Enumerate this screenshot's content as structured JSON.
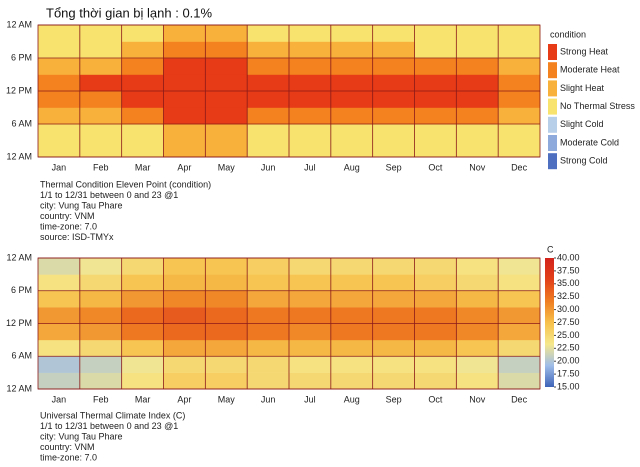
{
  "header_text": "Tổng thời gian bị lạnh : 0.1%",
  "chart_data": [
    {
      "type": "heatmap",
      "categories": [
        "Jan",
        "Feb",
        "Mar",
        "Apr",
        "May",
        "Jun",
        "Jul",
        "Aug",
        "Sep",
        "Oct",
        "Nov",
        "Dec"
      ],
      "hour_bins": [
        0,
        3,
        6,
        9,
        12,
        15,
        18,
        21,
        24
      ],
      "ylim": [
        0,
        24
      ],
      "yticks": [
        {
          "value": 0,
          "label": "12 AM"
        },
        {
          "value": 6,
          "label": "6 AM"
        },
        {
          "value": 12,
          "label": "12 PM"
        },
        {
          "value": 18,
          "label": "6 PM"
        },
        {
          "value": 24,
          "label": "12 AM"
        }
      ],
      "legend_title": "condition",
      "legend": [
        {
          "name": "Strong Heat",
          "color": "#e63b16"
        },
        {
          "name": "Moderate Heat",
          "color": "#f4821f"
        },
        {
          "name": "Slight Heat",
          "color": "#f8b13a"
        },
        {
          "name": "No Thermal Stress",
          "color": "#f8e36e"
        },
        {
          "name": "Slight Cold",
          "color": "#b7cfe9"
        },
        {
          "name": "Moderate Cold",
          "color": "#8ea9dc"
        },
        {
          "name": "Strong Cold",
          "color": "#4e6fbf"
        }
      ],
      "values": [
        [
          "No Thermal Stress",
          "No Thermal Stress",
          "Slight Heat",
          "Moderate Heat",
          "Moderate Heat",
          "Slight Heat",
          "No Thermal Stress",
          "No Thermal Stress"
        ],
        [
          "No Thermal Stress",
          "No Thermal Stress",
          "Slight Heat",
          "Moderate Heat",
          "Strong Heat",
          "Slight Heat",
          "No Thermal Stress",
          "No Thermal Stress"
        ],
        [
          "No Thermal Stress",
          "No Thermal Stress",
          "Moderate Heat",
          "Strong Heat",
          "Strong Heat",
          "Moderate Heat",
          "Slight Heat",
          "No Thermal Stress"
        ],
        [
          "Slight Heat",
          "Slight Heat",
          "Strong Heat",
          "Strong Heat",
          "Strong Heat",
          "Strong Heat",
          "Moderate Heat",
          "Slight Heat"
        ],
        [
          "Slight Heat",
          "Slight Heat",
          "Strong Heat",
          "Strong Heat",
          "Strong Heat",
          "Strong Heat",
          "Moderate Heat",
          "Slight Heat"
        ],
        [
          "No Thermal Stress",
          "No Thermal Stress",
          "Moderate Heat",
          "Strong Heat",
          "Strong Heat",
          "Moderate Heat",
          "Slight Heat",
          "No Thermal Stress"
        ],
        [
          "No Thermal Stress",
          "No Thermal Stress",
          "Moderate Heat",
          "Strong Heat",
          "Strong Heat",
          "Moderate Heat",
          "Slight Heat",
          "No Thermal Stress"
        ],
        [
          "No Thermal Stress",
          "No Thermal Stress",
          "Moderate Heat",
          "Strong Heat",
          "Strong Heat",
          "Moderate Heat",
          "Slight Heat",
          "No Thermal Stress"
        ],
        [
          "No Thermal Stress",
          "No Thermal Stress",
          "Moderate Heat",
          "Strong Heat",
          "Strong Heat",
          "Moderate Heat",
          "Slight Heat",
          "No Thermal Stress"
        ],
        [
          "No Thermal Stress",
          "No Thermal Stress",
          "Moderate Heat",
          "Strong Heat",
          "Strong Heat",
          "Moderate Heat",
          "No Thermal Stress",
          "No Thermal Stress"
        ],
        [
          "No Thermal Stress",
          "No Thermal Stress",
          "Moderate Heat",
          "Strong Heat",
          "Strong Heat",
          "Moderate Heat",
          "No Thermal Stress",
          "No Thermal Stress"
        ],
        [
          "No Thermal Stress",
          "No Thermal Stress",
          "Slight Heat",
          "Moderate Heat",
          "Moderate Heat",
          "Slight Heat",
          "No Thermal Stress",
          "No Thermal Stress"
        ]
      ],
      "notes": [
        "Thermal Condition Eleven Point (condition)",
        "1/1 to 12/31 between 0 and 23 @1",
        "city: Vung Tau Phare",
        "country: VNM",
        "time-zone: 7.0",
        "source: ISD-TMYx"
      ]
    },
    {
      "type": "heatmap",
      "categories": [
        "Jan",
        "Feb",
        "Mar",
        "Apr",
        "May",
        "Jun",
        "Jul",
        "Aug",
        "Sep",
        "Oct",
        "Nov",
        "Dec"
      ],
      "hour_bins": [
        0,
        3,
        6,
        9,
        12,
        15,
        18,
        21,
        24
      ],
      "ylim": [
        0,
        24
      ],
      "yticks": [
        {
          "value": 0,
          "label": "12 AM"
        },
        {
          "value": 6,
          "label": "6 AM"
        },
        {
          "value": 12,
          "label": "12 PM"
        },
        {
          "value": 18,
          "label": "6 PM"
        },
        {
          "value": 24,
          "label": "12 AM"
        }
      ],
      "legend_title": "C",
      "zlim": [
        15,
        40
      ],
      "zticks": [
        {
          "value": 15,
          "label": "15.00"
        },
        {
          "value": 17.5,
          "label": "17.50"
        },
        {
          "value": 20,
          "label": "20.00"
        },
        {
          "value": 22.5,
          "label": "22.50"
        },
        {
          "value": 25,
          "label": "25.00"
        },
        {
          "value": 27.5,
          "label": "27.50"
        },
        {
          "value": 30,
          "label": "30.00"
        },
        {
          "value": 32.5,
          "label": "32.50"
        },
        {
          "value": 35,
          "label": "35.00"
        },
        {
          "value": 37.5,
          "label": "37.50"
        },
        {
          "value": 40,
          "label": "40.00"
        }
      ],
      "colorscale": [
        "#3f64b8",
        "#9fbde8",
        "#f6e88c",
        "#f7c04a",
        "#ef7d22",
        "#e2401a",
        "#d3231c"
      ],
      "values": [
        [
          21,
          20,
          24,
          29,
          30,
          27,
          24,
          22
        ],
        [
          22,
          21,
          25,
          30,
          31,
          28,
          25,
          23
        ],
        [
          24,
          23,
          27,
          32,
          33,
          30,
          27,
          25
        ],
        [
          26,
          25,
          29,
          33,
          34,
          31,
          28,
          27
        ],
        [
          26,
          25,
          29,
          33,
          33,
          31,
          28,
          27
        ],
        [
          25,
          25,
          28,
          32,
          32,
          29,
          27,
          26
        ],
        [
          25,
          24,
          28,
          31,
          32,
          29,
          27,
          25
        ],
        [
          25,
          24,
          28,
          32,
          32,
          29,
          27,
          25
        ],
        [
          25,
          24,
          28,
          32,
          32,
          29,
          27,
          25
        ],
        [
          25,
          24,
          28,
          32,
          32,
          29,
          26,
          25
        ],
        [
          24,
          23,
          27,
          31,
          31,
          28,
          25,
          24
        ],
        [
          22,
          21,
          25,
          29,
          30,
          27,
          24,
          23
        ]
      ],
      "notes": [
        "Universal Thermal Climate Index (C)",
        "1/1 to 12/31 between 0 and 23 @1",
        "city: Vung Tau Phare",
        "country: VNM",
        "time-zone: 7.0"
      ]
    }
  ]
}
